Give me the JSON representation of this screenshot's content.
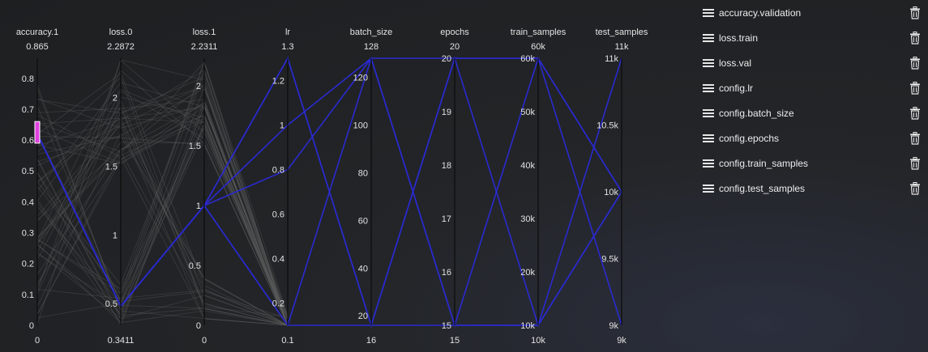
{
  "chart_data": {
    "type": "parallel_coordinates",
    "axes": [
      {
        "name": "accuracy.1",
        "max_label": "0.865",
        "min_label": "0",
        "ticks": [
          "0.8",
          "0.7",
          "0.6",
          "0.5",
          "0.4",
          "0.3",
          "0.2",
          "0.1",
          "0"
        ],
        "range": [
          0,
          0.865
        ]
      },
      {
        "name": "loss.0",
        "max_label": "2.2872",
        "min_label": "0.3411",
        "ticks": [
          "2",
          "1.5",
          "1",
          "0.5"
        ],
        "range": [
          0.3411,
          2.2872
        ]
      },
      {
        "name": "loss.1",
        "max_label": "2.2311",
        "min_label": "0",
        "ticks": [
          "2",
          "1.5",
          "1",
          "0.5",
          "0"
        ],
        "range": [
          0,
          2.2311
        ]
      },
      {
        "name": "lr",
        "max_label": "1.3",
        "min_label": "0.1",
        "ticks": [
          "1.2",
          "1",
          "0.8",
          "0.6",
          "0.4",
          "0.2"
        ],
        "range": [
          0.1,
          1.3
        ]
      },
      {
        "name": "batch_size",
        "max_label": "128",
        "min_label": "16",
        "ticks": [
          "120",
          "100",
          "80",
          "60",
          "40",
          "20"
        ],
        "range": [
          16,
          128
        ]
      },
      {
        "name": "epochs",
        "max_label": "20",
        "min_label": "15",
        "ticks": [
          "20",
          "19",
          "18",
          "17",
          "16",
          "15"
        ],
        "range": [
          15,
          20
        ]
      },
      {
        "name": "train_samples",
        "max_label": "60k",
        "min_label": "10k",
        "ticks": [
          "60k",
          "50k",
          "40k",
          "30k",
          "20k",
          "10k"
        ],
        "range": [
          10000,
          60000
        ]
      },
      {
        "name": "test_samples",
        "max_label": "11k",
        "min_label": "9k",
        "ticks": [
          "11k",
          "10.5k",
          "10k",
          "9.5k",
          "9k"
        ],
        "range": [
          9000,
          11000
        ]
      }
    ],
    "brush": {
      "axis": "accuracy.1",
      "from": 0.59,
      "to": 0.66,
      "color": "#e040e0"
    },
    "highlighted_series": [
      {
        "color": "#2a2ad0",
        "values": [
          0.62,
          0.48,
          1.0,
          1.0,
          128,
          15,
          60000,
          10000
        ]
      },
      {
        "color": "#2a2ad0",
        "values": [
          0.62,
          0.48,
          1.0,
          0.8,
          128,
          15,
          10000,
          10000
        ]
      },
      {
        "color": "#2a2ad0",
        "values": [
          0.62,
          0.48,
          1.0,
          1.3,
          16,
          20,
          10000,
          10000
        ]
      },
      {
        "color": "#2a2ad0",
        "values": [
          0.62,
          0.48,
          1.0,
          1.3,
          16,
          20,
          60000,
          10000
        ]
      },
      {
        "color": "#2a2ad0",
        "values": [
          0.62,
          0.48,
          1.0,
          0.1,
          16,
          15,
          10000,
          11000
        ]
      },
      {
        "color": "#2a2ad0",
        "values": [
          0.62,
          0.48,
          1.0,
          0.1,
          128,
          20,
          60000,
          9000
        ]
      }
    ],
    "background_lines_color": "#5a5a5a"
  },
  "panel": {
    "items": [
      {
        "label": "accuracy.validation"
      },
      {
        "label": "loss.train"
      },
      {
        "label": "loss.val"
      },
      {
        "label": "config.lr"
      },
      {
        "label": "config.batch_size"
      },
      {
        "label": "config.epochs"
      },
      {
        "label": "config.train_samples"
      },
      {
        "label": "config.test_samples"
      }
    ]
  }
}
